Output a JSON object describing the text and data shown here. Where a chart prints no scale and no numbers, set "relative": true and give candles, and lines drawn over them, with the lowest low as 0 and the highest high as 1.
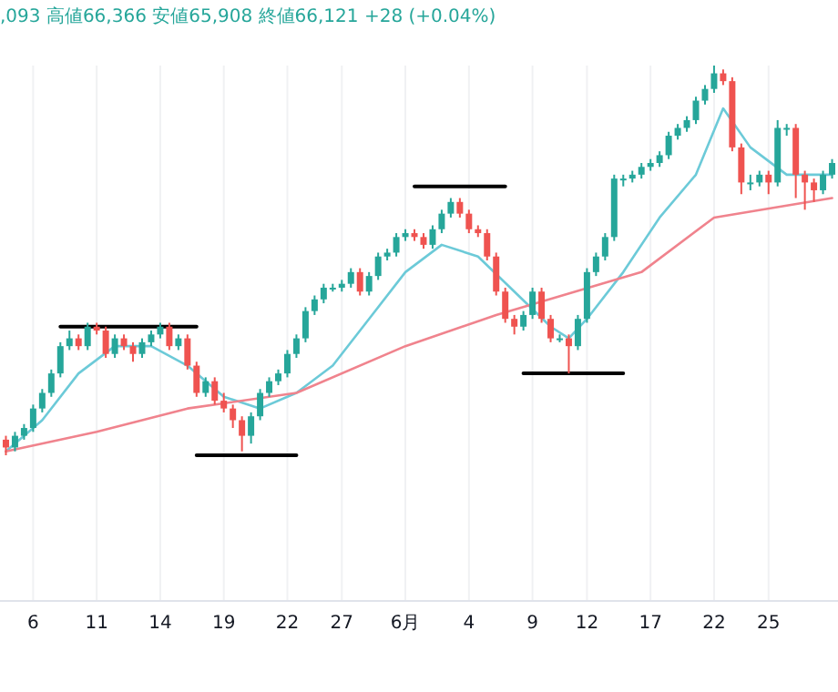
{
  "chart_data": {
    "type": "candlestick",
    "relative": true,
    "grid": "x",
    "annotations": [
      ",093 高値66,366 安値65,908 終値66,121 +28 (+0.04%)"
    ],
    "categories": [
      null,
      null,
      null,
      "6",
      null,
      null,
      null,
      null,
      null,
      null,
      "11",
      null,
      null,
      null,
      null,
      null,
      null,
      "14",
      null,
      null,
      null,
      null,
      null,
      null,
      "19",
      null,
      null,
      null,
      null,
      null,
      null,
      "22",
      null,
      null,
      null,
      null,
      null,
      "27",
      null,
      null,
      null,
      null,
      null,
      null,
      "6月",
      null,
      null,
      null,
      null,
      null,
      null,
      "4",
      null,
      null,
      null,
      null,
      null,
      null,
      "9",
      null,
      null,
      null,
      null,
      null,
      "12",
      null,
      null,
      null,
      null,
      null,
      null,
      "17",
      null,
      null,
      null,
      null,
      null,
      null,
      "22",
      null,
      null,
      null,
      null,
      null,
      "25",
      null,
      null,
      null,
      null,
      null,
      null,
      null
    ],
    "ohlc": [
      [
        0.04,
        0.05,
        0.0,
        0.02
      ],
      [
        0.02,
        0.06,
        0.01,
        0.05
      ],
      [
        0.05,
        0.08,
        0.04,
        0.07
      ],
      [
        0.07,
        0.13,
        0.06,
        0.12
      ],
      [
        0.12,
        0.17,
        0.11,
        0.16
      ],
      [
        0.16,
        0.22,
        0.15,
        0.21
      ],
      [
        0.21,
        0.29,
        0.2,
        0.28
      ],
      [
        0.28,
        0.32,
        0.27,
        0.3
      ],
      [
        0.3,
        0.31,
        0.27,
        0.28
      ],
      [
        0.28,
        0.34,
        0.27,
        0.33
      ],
      [
        0.33,
        0.34,
        0.31,
        0.32
      ],
      [
        0.32,
        0.33,
        0.25,
        0.26
      ],
      [
        0.26,
        0.31,
        0.25,
        0.3
      ],
      [
        0.3,
        0.31,
        0.27,
        0.28
      ],
      [
        0.28,
        0.29,
        0.24,
        0.26
      ],
      [
        0.26,
        0.3,
        0.25,
        0.29
      ],
      [
        0.29,
        0.32,
        0.28,
        0.31
      ],
      [
        0.31,
        0.34,
        0.3,
        0.33
      ],
      [
        0.33,
        0.34,
        0.27,
        0.28
      ],
      [
        0.28,
        0.31,
        0.27,
        0.3
      ],
      [
        0.3,
        0.31,
        0.22,
        0.23
      ],
      [
        0.23,
        0.24,
        0.15,
        0.16
      ],
      [
        0.16,
        0.2,
        0.15,
        0.19
      ],
      [
        0.19,
        0.2,
        0.13,
        0.14
      ],
      [
        0.14,
        0.16,
        0.11,
        0.12
      ],
      [
        0.12,
        0.13,
        0.07,
        0.09
      ],
      [
        0.09,
        0.1,
        0.01,
        0.05
      ],
      [
        0.05,
        0.11,
        0.03,
        0.1
      ],
      [
        0.1,
        0.17,
        0.09,
        0.16
      ],
      [
        0.16,
        0.2,
        0.15,
        0.19
      ],
      [
        0.19,
        0.22,
        0.18,
        0.21
      ],
      [
        0.21,
        0.27,
        0.2,
        0.26
      ],
      [
        0.26,
        0.31,
        0.25,
        0.3
      ],
      [
        0.3,
        0.38,
        0.29,
        0.37
      ],
      [
        0.37,
        0.41,
        0.36,
        0.4
      ],
      [
        0.4,
        0.44,
        0.39,
        0.43
      ],
      [
        0.43,
        0.44,
        0.42,
        0.43
      ],
      [
        0.43,
        0.45,
        0.42,
        0.44
      ],
      [
        0.44,
        0.48,
        0.43,
        0.47
      ],
      [
        0.47,
        0.48,
        0.41,
        0.42
      ],
      [
        0.42,
        0.47,
        0.41,
        0.46
      ],
      [
        0.46,
        0.52,
        0.45,
        0.51
      ],
      [
        0.51,
        0.53,
        0.5,
        0.52
      ],
      [
        0.52,
        0.57,
        0.51,
        0.56
      ],
      [
        0.56,
        0.58,
        0.55,
        0.57
      ],
      [
        0.57,
        0.58,
        0.55,
        0.56
      ],
      [
        0.56,
        0.57,
        0.53,
        0.54
      ],
      [
        0.54,
        0.59,
        0.53,
        0.58
      ],
      [
        0.58,
        0.63,
        0.57,
        0.62
      ],
      [
        0.62,
        0.66,
        0.61,
        0.65
      ],
      [
        0.65,
        0.66,
        0.61,
        0.62
      ],
      [
        0.62,
        0.63,
        0.57,
        0.58
      ],
      [
        0.58,
        0.59,
        0.56,
        0.57
      ],
      [
        0.57,
        0.58,
        0.5,
        0.51
      ],
      [
        0.51,
        0.52,
        0.41,
        0.42
      ],
      [
        0.42,
        0.43,
        0.34,
        0.35
      ],
      [
        0.35,
        0.36,
        0.31,
        0.33
      ],
      [
        0.33,
        0.37,
        0.32,
        0.36
      ],
      [
        0.36,
        0.43,
        0.35,
        0.42
      ],
      [
        0.42,
        0.43,
        0.34,
        0.35
      ],
      [
        0.35,
        0.36,
        0.29,
        0.3
      ],
      [
        0.3,
        0.31,
        0.29,
        0.3
      ],
      [
        0.3,
        0.31,
        0.21,
        0.28
      ],
      [
        0.28,
        0.36,
        0.27,
        0.35
      ],
      [
        0.35,
        0.48,
        0.34,
        0.47
      ],
      [
        0.47,
        0.52,
        0.46,
        0.51
      ],
      [
        0.51,
        0.57,
        0.5,
        0.56
      ],
      [
        0.56,
        0.72,
        0.55,
        0.71
      ],
      [
        0.71,
        0.72,
        0.69,
        0.71
      ],
      [
        0.71,
        0.73,
        0.7,
        0.72
      ],
      [
        0.72,
        0.75,
        0.71,
        0.74
      ],
      [
        0.74,
        0.76,
        0.73,
        0.75
      ],
      [
        0.75,
        0.78,
        0.74,
        0.77
      ],
      [
        0.77,
        0.83,
        0.76,
        0.82
      ],
      [
        0.82,
        0.85,
        0.81,
        0.84
      ],
      [
        0.84,
        0.87,
        0.83,
        0.86
      ],
      [
        0.86,
        0.92,
        0.85,
        0.91
      ],
      [
        0.91,
        0.95,
        0.9,
        0.94
      ],
      [
        0.94,
        1.0,
        0.93,
        0.98
      ],
      [
        0.98,
        0.99,
        0.95,
        0.96
      ],
      [
        0.96,
        0.97,
        0.78,
        0.79
      ],
      [
        0.79,
        0.8,
        0.67,
        0.7
      ],
      [
        0.7,
        0.72,
        0.68,
        0.7
      ],
      [
        0.7,
        0.73,
        0.69,
        0.72
      ],
      [
        0.72,
        0.73,
        0.67,
        0.7
      ],
      [
        0.7,
        0.86,
        0.69,
        0.84
      ],
      [
        0.84,
        0.85,
        0.82,
        0.84
      ],
      [
        0.84,
        0.85,
        0.66,
        0.72
      ],
      [
        0.72,
        0.73,
        0.63,
        0.7
      ],
      [
        0.7,
        0.71,
        0.65,
        0.68
      ],
      [
        0.68,
        0.73,
        0.67,
        0.72
      ],
      [
        0.72,
        0.76,
        0.71,
        0.75
      ]
    ],
    "series": [
      {
        "type": "line",
        "color": "#6ccad8",
        "values": [
          0.01,
          null,
          null,
          null,
          0.09,
          null,
          null,
          null,
          0.21,
          null,
          null,
          null,
          0.28,
          null,
          null,
          null,
          0.28,
          null,
          null,
          null,
          0.23,
          null,
          null,
          null,
          0.15,
          null,
          null,
          null,
          0.12,
          null,
          null,
          null,
          0.16,
          null,
          null,
          null,
          0.23,
          null,
          null,
          null,
          0.35,
          null,
          null,
          null,
          0.47,
          null,
          null,
          null,
          0.54,
          null,
          null,
          null,
          0.51,
          null,
          null,
          null,
          0.42,
          null,
          null,
          null,
          0.33,
          null,
          0.3,
          null,
          0.35,
          null,
          null,
          null,
          0.47,
          null,
          null,
          null,
          0.61,
          null,
          null,
          null,
          0.72,
          null,
          null,
          0.89,
          null,
          null,
          0.79,
          null,
          null,
          null,
          0.72,
          null,
          null,
          null,
          null,
          0.72
        ]
      },
      {
        "type": "line",
        "color": "#f0838d",
        "values": [
          0.01,
          null,
          null,
          null,
          null,
          null,
          null,
          null,
          null,
          null,
          0.06,
          null,
          null,
          null,
          null,
          null,
          null,
          null,
          null,
          null,
          0.12,
          null,
          null,
          null,
          null,
          null,
          null,
          null,
          null,
          null,
          null,
          null,
          0.16,
          null,
          null,
          null,
          null,
          null,
          null,
          null,
          null,
          null,
          null,
          null,
          0.28,
          null,
          null,
          null,
          null,
          null,
          null,
          null,
          null,
          null,
          0.36,
          null,
          null,
          null,
          null,
          null,
          null,
          null,
          null,
          null,
          null,
          null,
          null,
          null,
          null,
          null,
          0.47,
          null,
          null,
          null,
          null,
          null,
          null,
          null,
          0.61,
          null,
          null,
          null,
          null,
          null,
          null,
          null,
          null,
          null,
          null,
          null,
          null,
          0.66
        ]
      },
      {
        "type": "line",
        "color": "#000000",
        "values": [
          null,
          null,
          null,
          null,
          null,
          null,
          0.33,
          null,
          null,
          null,
          null,
          null,
          null,
          null,
          null,
          null,
          null,
          null,
          null,
          null,
          null,
          0.33,
          null,
          null,
          null,
          null,
          null,
          null,
          null,
          null,
          null,
          null,
          null,
          null,
          null,
          null,
          null,
          null,
          null,
          null,
          null,
          null,
          null,
          null,
          null,
          null,
          null,
          null,
          null,
          null,
          null,
          null,
          null,
          null,
          null,
          null,
          null,
          null,
          null,
          null,
          null,
          null,
          null,
          null,
          null,
          null,
          null,
          null,
          null,
          null,
          null,
          null,
          null,
          null,
          null,
          null,
          null,
          null,
          null,
          null,
          null,
          null,
          null,
          null,
          null,
          null,
          null,
          null,
          null,
          null,
          null,
          null
        ]
      },
      {
        "type": "line",
        "color": "#000000",
        "values": [
          null,
          null,
          null,
          null,
          null,
          null,
          null,
          null,
          null,
          null,
          null,
          null,
          null,
          null,
          null,
          null,
          null,
          null,
          null,
          null,
          null,
          0.0,
          null,
          null,
          null,
          null,
          null,
          null,
          null,
          null,
          null,
          null,
          0.0,
          null,
          null,
          null,
          null,
          null,
          null,
          null,
          null,
          null,
          null,
          null,
          null,
          null,
          null,
          null,
          null,
          null,
          null,
          null,
          null,
          null,
          null,
          null,
          null,
          null,
          null,
          null,
          null,
          null,
          null,
          null,
          null,
          null,
          null,
          null,
          null,
          null,
          null,
          null,
          null,
          null,
          null,
          null,
          null,
          null,
          null,
          null,
          null,
          null,
          null,
          null,
          null,
          null,
          null,
          null,
          null,
          null,
          null,
          null
        ]
      },
      {
        "type": "line",
        "color": "#000000",
        "values": [
          null,
          null,
          null,
          null,
          null,
          null,
          null,
          null,
          null,
          null,
          null,
          null,
          null,
          null,
          null,
          null,
          null,
          null,
          null,
          null,
          null,
          null,
          null,
          null,
          null,
          null,
          null,
          null,
          null,
          null,
          null,
          null,
          null,
          null,
          null,
          null,
          null,
          null,
          null,
          null,
          null,
          null,
          null,
          null,
          null,
          0.69,
          null,
          null,
          null,
          null,
          null,
          null,
          null,
          null,
          null,
          0.69,
          null,
          null,
          null,
          null,
          null,
          null,
          null,
          null,
          null,
          null,
          null,
          null,
          null,
          null,
          null,
          null,
          null,
          null,
          null,
          null,
          null,
          null,
          null,
          null,
          null,
          null,
          null,
          null,
          null,
          null,
          null,
          null,
          null,
          null,
          null,
          null
        ]
      },
      {
        "type": "line",
        "color": "#000000",
        "values": [
          null,
          null,
          null,
          null,
          null,
          null,
          null,
          null,
          null,
          null,
          null,
          null,
          null,
          null,
          null,
          null,
          null,
          null,
          null,
          null,
          null,
          null,
          null,
          null,
          null,
          null,
          null,
          null,
          null,
          null,
          null,
          null,
          null,
          null,
          null,
          null,
          null,
          null,
          null,
          null,
          null,
          null,
          null,
          null,
          null,
          null,
          null,
          null,
          null,
          null,
          null,
          null,
          null,
          null,
          null,
          null,
          null,
          0.21,
          null,
          null,
          null,
          null,
          null,
          null,
          null,
          null,
          null,
          null,
          0.21,
          null,
          null,
          null,
          null,
          null,
          null,
          null,
          null,
          null,
          null,
          null,
          null,
          null,
          null,
          null,
          null,
          null,
          null,
          null,
          null,
          null,
          null,
          null
        ]
      }
    ]
  }
}
